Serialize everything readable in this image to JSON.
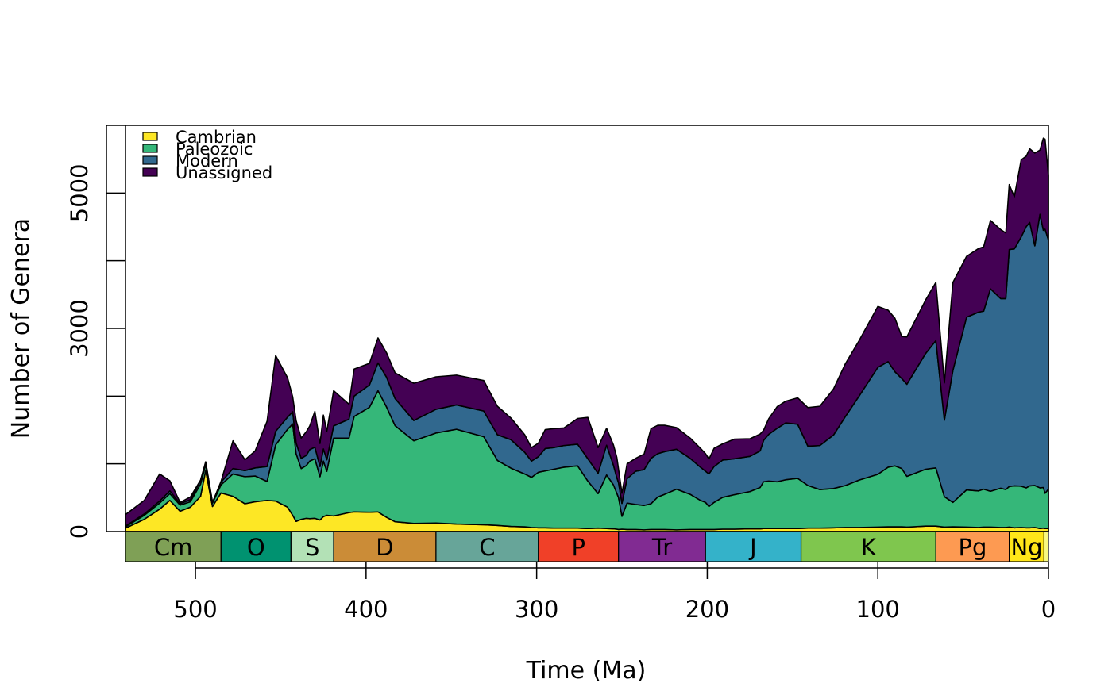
{
  "chart_data": {
    "type": "area",
    "stacked": true,
    "title": "",
    "xlabel": "Time (Ma)",
    "ylabel": "Number of Genera",
    "xlim": [
      541,
      0
    ],
    "ylim": [
      0,
      6000
    ],
    "x_ticks": [
      500,
      400,
      300,
      200,
      100,
      0
    ],
    "y_ticks": [
      0,
      1000,
      2000,
      3000,
      4000,
      5000,
      6000
    ],
    "y_tick_labels": [
      "0",
      "",
      "",
      "3000",
      "",
      "5000",
      ""
    ],
    "legend": {
      "placement": "top-left",
      "entries": [
        "Cambrian",
        "Paleozoic",
        "Modern",
        "Unassigned"
      ]
    },
    "colors": {
      "Cambrian": "#FDE725",
      "Paleozoic": "#35B779",
      "Modern": "#31688E",
      "Unassigned": "#440154"
    },
    "x": [
      541,
      530,
      521,
      515,
      509,
      503,
      497,
      494,
      490,
      485,
      478,
      471,
      465,
      458,
      453,
      446,
      443,
      441,
      438,
      435,
      433,
      430,
      427,
      425,
      423,
      419,
      410,
      407,
      398,
      393,
      388,
      383,
      372,
      359,
      347,
      331,
      323,
      315,
      307,
      303,
      299,
      295,
      290,
      284,
      276,
      270,
      264,
      259,
      255,
      253,
      252,
      250,
      247,
      242,
      237,
      233,
      229,
      225,
      218,
      210,
      204,
      201,
      199,
      196,
      191,
      184,
      175,
      169,
      167,
      164,
      159,
      154,
      147,
      141,
      134,
      126,
      119,
      111,
      100,
      94,
      90,
      86,
      83,
      72,
      66,
      61,
      56,
      48,
      41,
      38,
      34,
      28,
      25,
      23,
      20,
      16,
      13,
      11,
      8,
      5,
      3,
      2,
      0
    ],
    "series": [
      {
        "name": "Cambrian",
        "values": [
          50,
          180,
          330,
          460,
          300,
          360,
          520,
          900,
          370,
          570,
          520,
          410,
          440,
          460,
          450,
          360,
          240,
          150,
          180,
          195,
          190,
          195,
          170,
          220,
          240,
          230,
          280,
          290,
          285,
          290,
          210,
          145,
          120,
          125,
          110,
          100,
          90,
          75,
          70,
          60,
          55,
          55,
          50,
          50,
          50,
          45,
          50,
          45,
          40,
          35,
          30,
          35,
          30,
          30,
          25,
          30,
          30,
          30,
          25,
          30,
          30,
          30,
          30,
          30,
          35,
          35,
          40,
          40,
          45,
          45,
          45,
          45,
          45,
          50,
          50,
          55,
          60,
          60,
          65,
          70,
          70,
          70,
          65,
          80,
          80,
          65,
          70,
          65,
          60,
          65,
          65,
          60,
          60,
          65,
          55,
          60,
          55,
          55,
          60,
          45,
          50,
          45,
          45
        ]
      },
      {
        "name": "Paleozoic",
        "values": [
          20,
          60,
          90,
          100,
          90,
          80,
          180,
          90,
          50,
          120,
          330,
          400,
          380,
          280,
          830,
          1150,
          1350,
          1000,
          750,
          780,
          850,
          880,
          640,
          820,
          650,
          1150,
          1100,
          1410,
          1550,
          1790,
          1630,
          1420,
          1220,
          1330,
          1400,
          1300,
          960,
          860,
          780,
          740,
          820,
          840,
          870,
          900,
          920,
          700,
          510,
          790,
          650,
          530,
          470,
          190,
          390,
          370,
          360,
          380,
          480,
          520,
          600,
          520,
          430,
          400,
          340,
          400,
          470,
          510,
          550,
          610,
          690,
          700,
          690,
          720,
          740,
          630,
          570,
          580,
          620,
          700,
          780,
          880,
          900,
          860,
          750,
          840,
          860,
          450,
          360,
          550,
          540,
          560,
          530,
          580,
          560,
          600,
          620,
          610,
          590,
          620,
          620,
          600,
          600,
          520,
          580
        ]
      },
      {
        "name": "Modern",
        "values": [
          10,
          20,
          30,
          40,
          20,
          30,
          50,
          30,
          10,
          40,
          80,
          90,
          120,
          220,
          200,
          180,
          180,
          160,
          150,
          150,
          170,
          170,
          150,
          180,
          170,
          180,
          280,
          300,
          330,
          410,
          440,
          400,
          300,
          350,
          360,
          380,
          380,
          420,
          320,
          240,
          230,
          330,
          320,
          320,
          320,
          330,
          300,
          440,
          290,
          230,
          220,
          190,
          360,
          490,
          530,
          670,
          640,
          630,
          590,
          530,
          490,
          460,
          480,
          530,
          550,
          530,
          520,
          540,
          610,
          690,
          790,
          840,
          800,
          580,
          650,
          790,
          1020,
          1240,
          1580,
          1560,
          1390,
          1330,
          1360,
          1710,
          1880,
          1130,
          1950,
          2550,
          2640,
          2630,
          2990,
          2800,
          2820,
          3500,
          3500,
          3680,
          3860,
          3890,
          3540,
          4040,
          3800,
          3900,
          3680
        ]
      },
      {
        "name": "Unassigned",
        "values": [
          170,
          200,
          400,
          150,
          20,
          40,
          10,
          10,
          0,
          10,
          410,
          160,
          250,
          670,
          1120,
          580,
          220,
          330,
          300,
          350,
          350,
          530,
          340,
          500,
          420,
          520,
          220,
          400,
          320,
          370,
          360,
          380,
          550,
          480,
          440,
          450,
          420,
          320,
          260,
          200,
          200,
          280,
          280,
          260,
          380,
          610,
          380,
          250,
          300,
          300,
          200,
          150,
          220,
          190,
          230,
          440,
          420,
          390,
          320,
          300,
          280,
          260,
          220,
          270,
          240,
          290,
          260,
          250,
          150,
          230,
          320,
          320,
          390,
          570,
          580,
          680,
          780,
          820,
          900,
          760,
          790,
          620,
          700,
          790,
          860,
          550,
          1300,
          900,
          940,
          950,
          1010,
          1020,
          970,
          960,
          770,
          1140,
          1040,
          1090,
          1370,
          950,
          1360,
          1330,
          950
        ]
      }
    ],
    "timescale": {
      "periods": [
        {
          "label": "Cm",
          "start": 541,
          "end": 485,
          "color": "#7FA056"
        },
        {
          "label": "O",
          "start": 485,
          "end": 444,
          "color": "#009270"
        },
        {
          "label": "S",
          "start": 444,
          "end": 419,
          "color": "#B3E1B6"
        },
        {
          "label": "D",
          "start": 419,
          "end": 359,
          "color": "#CB8C37"
        },
        {
          "label": "C",
          "start": 359,
          "end": 299,
          "color": "#67A599"
        },
        {
          "label": "P",
          "start": 299,
          "end": 252,
          "color": "#F04028"
        },
        {
          "label": "Tr",
          "start": 252,
          "end": 201,
          "color": "#812B92"
        },
        {
          "label": "J",
          "start": 201,
          "end": 145,
          "color": "#34B2C9"
        },
        {
          "label": "K",
          "start": 145,
          "end": 66,
          "color": "#7FC64E"
        },
        {
          "label": "Pg",
          "start": 66,
          "end": 23,
          "color": "#FD9A52"
        },
        {
          "label": "Ng",
          "start": 23,
          "end": 2.6,
          "color": "#FFE619"
        },
        {
          "label": "",
          "start": 2.6,
          "end": 0,
          "color": "#F9F97F"
        }
      ]
    }
  }
}
